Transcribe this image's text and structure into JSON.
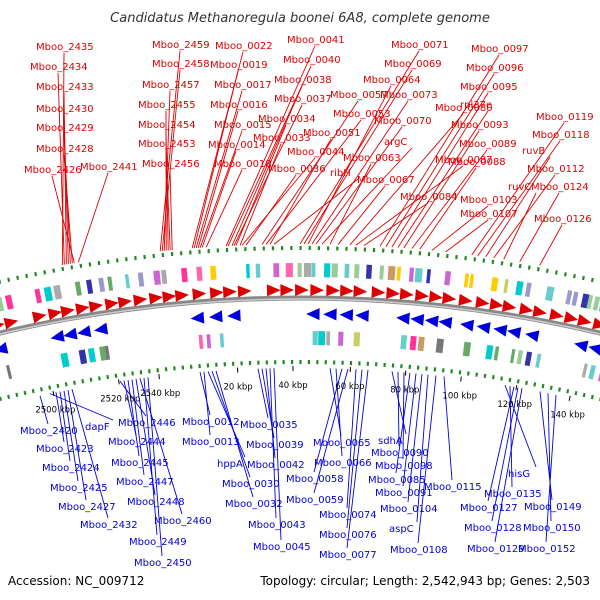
{
  "title": "Candidatus Methanoregula boonei 6A8, complete genome",
  "footer": {
    "accession": "Accession: NC_009712",
    "summary": "Topology: circular; Length: 2,542,943 bp; Genes: 2,503"
  },
  "colors": {
    "plus_strand": "#dd0000",
    "minus_strand": "#0000dd",
    "backbone": "#888888",
    "tick_marks": "#228822"
  },
  "scale": {
    "ticks": [
      "2500 kbp",
      "2520 kbp",
      "2540 kbp",
      "20 kbp",
      "40 kbp",
      "60 kbp",
      "80 kbp",
      "100 kbp",
      "120 kbp",
      "140 kbp"
    ]
  },
  "genes_top": [
    "Mboo_2435",
    "Mboo_2434",
    "Mboo_2433",
    "Mboo_2430",
    "Mboo_2429",
    "Mboo_2428",
    "Mboo_2426",
    "Mboo_2441",
    "Mboo_2459",
    "Mboo_2458",
    "Mboo_2457",
    "Mboo_2455",
    "Mboo_2454",
    "Mboo_2453",
    "Mboo_2456",
    "Mboo_0022",
    "Mboo_0019",
    "Mboo_0017",
    "Mboo_0016",
    "Mboo_0015",
    "Mboo_0014",
    "Mboo_0018",
    "Mboo_0041",
    "Mboo_0040",
    "Mboo_0038",
    "Mboo_0037",
    "Mboo_0034",
    "Mboo_0033",
    "Mboo_0044",
    "Mboo_0036",
    "Mboo_0057",
    "Mboo_0053",
    "Mboo_0051",
    "ribH",
    "Mboo_0071",
    "Mboo_0069",
    "Mboo_0064",
    "Mboo_0073",
    "Mboo_0070",
    "argC",
    "Mboo_0063",
    "Mboo_0067",
    "Mboo_0080",
    "Mboo_0087",
    "Mboo_0084",
    "Mboo_0097",
    "Mboo_0096",
    "Mboo_0095",
    "rpl37e",
    "Mboo_0093",
    "Mboo_0089",
    "Mboo_0088",
    "Mboo_0103",
    "Mboo_0107",
    "Mboo_0119",
    "Mboo_0118",
    "ruvB",
    "Mboo_0112",
    "ruvC",
    "Mboo_0124",
    "Mboo_0126"
  ],
  "genes_bottom": [
    "Mboo_2420",
    "dapF",
    "Mboo_2423",
    "Mboo_2424",
    "Mboo_2425",
    "Mboo_2427",
    "Mboo_2432",
    "Mboo_2446",
    "Mboo_2444",
    "Mboo_2445",
    "Mboo_2447",
    "Mboo_2448",
    "Mboo_2460",
    "Mboo_2449",
    "Mboo_2450",
    "Mboo_0012",
    "Mboo_0013",
    "hppA",
    "Mboo_0030",
    "Mboo_0032",
    "Mboo_0035",
    "Mboo_0039",
    "Mboo_0042",
    "Mboo_0043",
    "Mboo_0045",
    "Mboo_0065",
    "Mboo_0066",
    "Mboo_0058",
    "Mboo_0059",
    "Mboo_0074",
    "Mboo_0076",
    "Mboo_0077",
    "sdhA",
    "Mboo_0090",
    "Mboo_0098",
    "Mboo_0085",
    "Mboo_0091",
    "Mboo_0104",
    "aspC",
    "Mboo_0108",
    "Mboo_0115",
    "hisG",
    "Mboo_0135",
    "Mboo_0127",
    "Mboo_0128",
    "Mboo_0129",
    "Mboo_0149",
    "Mboo_0150",
    "Mboo_0152"
  ]
}
